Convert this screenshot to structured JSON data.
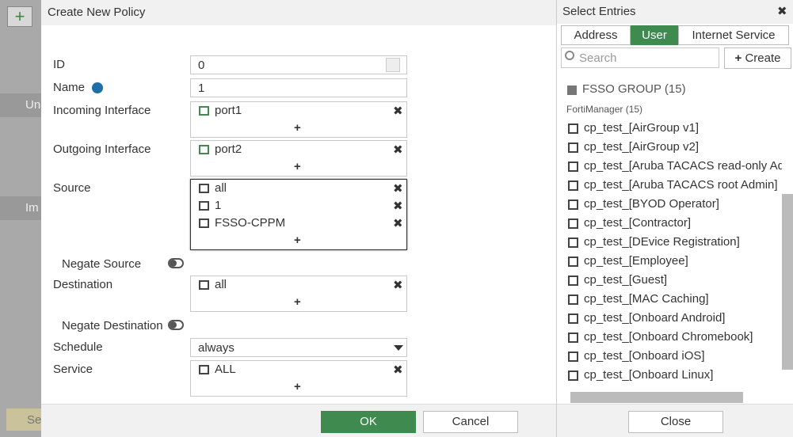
{
  "background": {
    "section_labels": [
      "Un",
      "Im",
      "Se"
    ]
  },
  "dialog": {
    "title": "Create New Policy",
    "fields": [
      {
        "label": "ID",
        "value": "0"
      },
      {
        "label": "Name",
        "value": "1"
      },
      {
        "label": "Incoming Interface",
        "entries": [
          "port1"
        ]
      },
      {
        "label": "Outgoing Interface",
        "entries": [
          "port2"
        ]
      },
      {
        "label": "Source",
        "entries": [
          "all",
          "1",
          "FSSO-CPPM"
        ]
      },
      {
        "label": "Negate Source"
      },
      {
        "label": "Destination",
        "entries": [
          "all"
        ]
      },
      {
        "label": "Negate Destination"
      },
      {
        "label": "Schedule",
        "value": "always"
      },
      {
        "label": "Service",
        "entries": [
          "ALL"
        ]
      }
    ],
    "buttons": [
      "OK",
      "Cancel"
    ]
  },
  "panel": {
    "title": "Select Entries",
    "tabs": [
      "Address",
      "User",
      "Internet Service"
    ],
    "active_tab": 1,
    "search_placeholder": "Search",
    "create": "Create",
    "group": "FSSO GROUP (15)",
    "subgroup": "FortiManager (15)",
    "items": [
      "cp_test_[AirGroup v1]",
      "cp_test_[AirGroup v2]",
      "cp_test_[Aruba TACACS read-only Admin]",
      "cp_test_[Aruba TACACS root Admin]",
      "cp_test_[BYOD Operator]",
      "cp_test_[Contractor]",
      "cp_test_[DEvice Registration]",
      "cp_test_[Employee]",
      "cp_test_[Guest]",
      "cp_test_[MAC Caching]",
      "cp_test_[Onboard Android]",
      "cp_test_[Onboard Chromebook]",
      "cp_test_[Onboard iOS]",
      "cp_test_[Onboard Linux]"
    ],
    "close": "Close"
  }
}
